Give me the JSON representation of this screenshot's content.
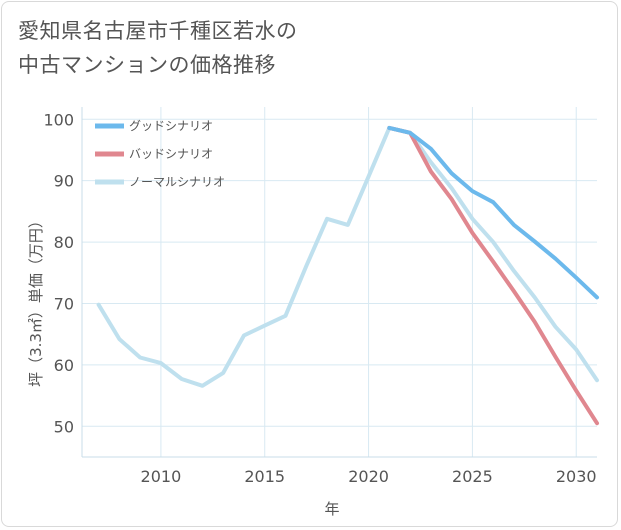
{
  "title_lines": [
    "愛知県名古屋市千種区若水の",
    "中古マンションの価格推移"
  ],
  "chart_data": {
    "type": "line",
    "xlabel": "年",
    "ylabel": "坪（3.3㎡）単価（万円）",
    "xlim": [
      2006.2,
      2031
    ],
    "ylim": [
      45,
      102
    ],
    "x_ticks": [
      2010,
      2015,
      2020,
      2025,
      2030
    ],
    "y_ticks": [
      50,
      60,
      70,
      80,
      90,
      100
    ],
    "grid": true,
    "legend_position": "top-left",
    "series": [
      {
        "name": "グッドシナリオ",
        "color": "#6cb9ec",
        "x": [
          2021,
          2022,
          2023,
          2024,
          2025,
          2026,
          2027,
          2028,
          2029,
          2030,
          2031
        ],
        "y": [
          98.6,
          97.8,
          95.2,
          91.2,
          88.3,
          86.5,
          82.8,
          80.1,
          77.3,
          74.2,
          71.0
        ]
      },
      {
        "name": "バッドシナリオ",
        "color": "#e0878f",
        "x": [
          2021,
          2022,
          2023,
          2024,
          2025,
          2026,
          2027,
          2028,
          2029,
          2030,
          2031
        ],
        "y": [
          98.6,
          97.8,
          91.5,
          87.0,
          81.5,
          76.8,
          72.0,
          67.0,
          61.3,
          55.8,
          50.5
        ]
      },
      {
        "name": "ノーマルシナリオ",
        "color": "#bfe0ee",
        "x": [
          2007,
          2008,
          2009,
          2010,
          2011,
          2012,
          2013,
          2014,
          2015,
          2016,
          2017,
          2018,
          2019,
          2020,
          2021,
          2022,
          2023,
          2024,
          2025,
          2026,
          2027,
          2028,
          2029,
          2030,
          2031
        ],
        "y": [
          69.8,
          64.2,
          61.2,
          60.3,
          57.7,
          56.6,
          58.7,
          64.8,
          66.4,
          68.0,
          76.1,
          83.8,
          82.8,
          90.7,
          98.6,
          97.8,
          93.0,
          88.8,
          83.8,
          80.0,
          75.3,
          71.0,
          66.2,
          62.5,
          57.5
        ]
      }
    ]
  }
}
